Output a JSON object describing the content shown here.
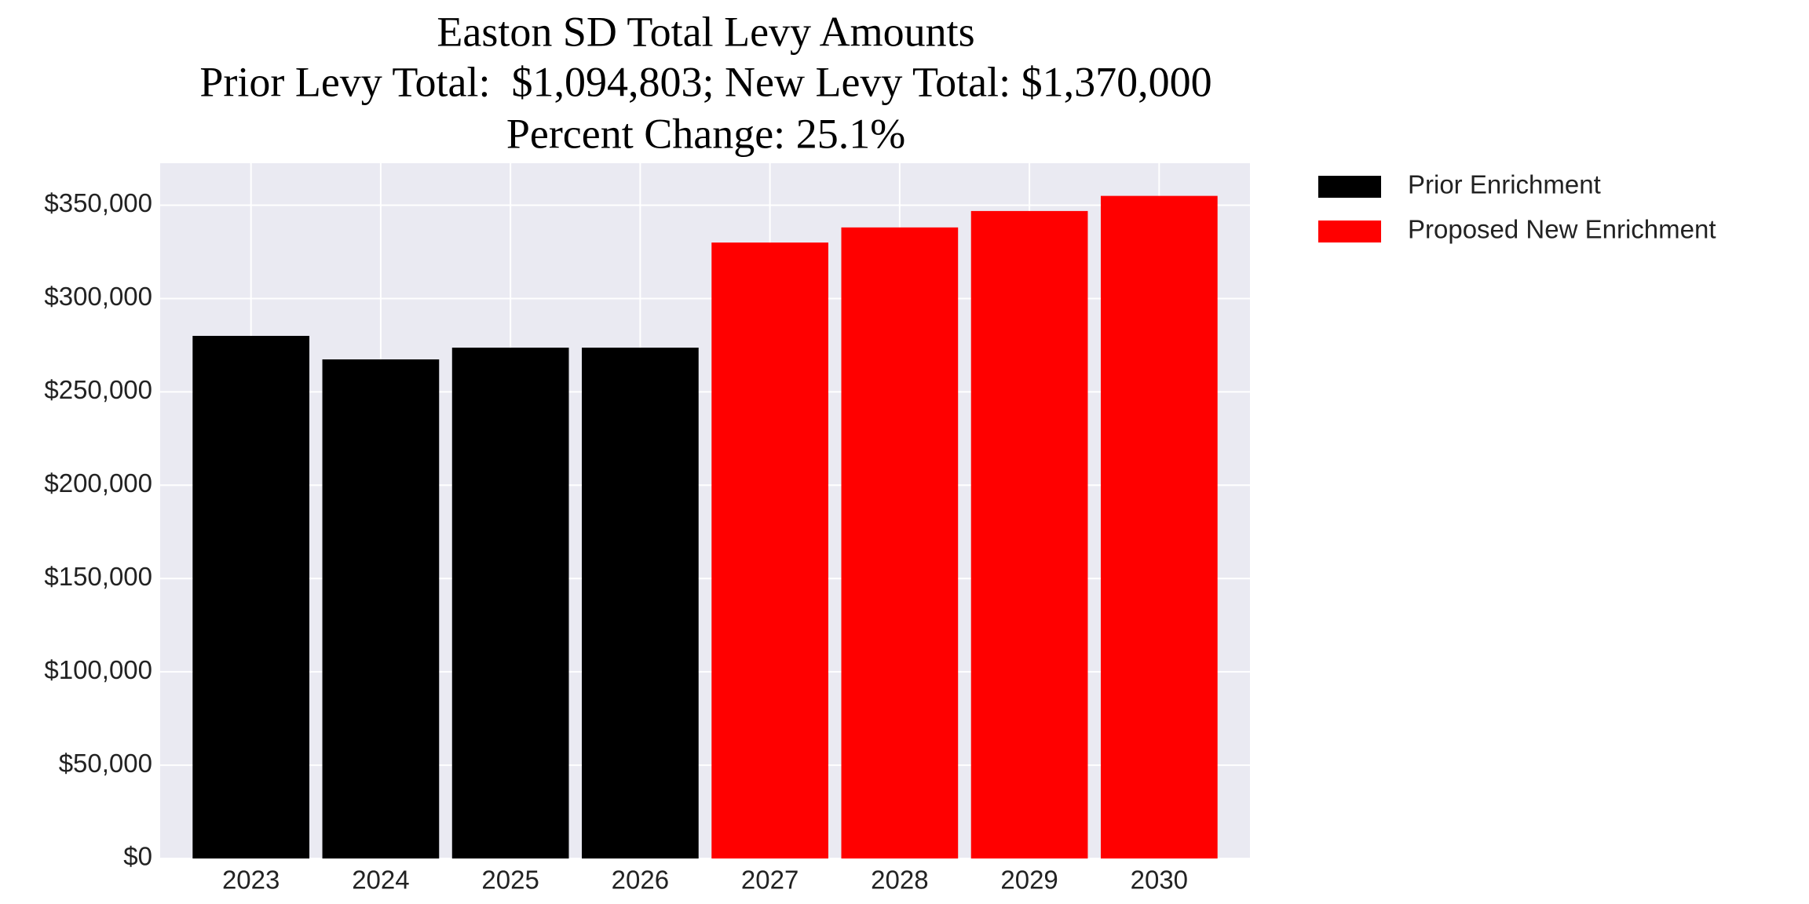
{
  "chart_data": {
    "type": "bar",
    "title": "Easton SD Total Levy Amounts",
    "subtitle": [
      "Prior Levy Total:  $1,094,803; New Levy Total: $1,370,000",
      "Percent Change: 25.1%"
    ],
    "categories": [
      "2023",
      "2024",
      "2025",
      "2026",
      "2027",
      "2028",
      "2029",
      "2030"
    ],
    "series": [
      {
        "name": "Prior Enrichment",
        "color": "#000000",
        "values": [
          280000,
          267400,
          273700,
          273700,
          null,
          null,
          null,
          null
        ]
      },
      {
        "name": "Proposed New Enrichment",
        "color": "#ff0000",
        "values": [
          null,
          null,
          null,
          null,
          330000,
          338100,
          346900,
          355000
        ]
      }
    ],
    "ylim": [
      0,
      372500
    ],
    "yticks": [
      {
        "value": 0,
        "label": "$0"
      },
      {
        "value": 50000,
        "label": "$50,000"
      },
      {
        "value": 100000,
        "label": "$100,000"
      },
      {
        "value": 150000,
        "label": "$150,000"
      },
      {
        "value": 200000,
        "label": "$200,000"
      },
      {
        "value": 250000,
        "label": "$250,000"
      },
      {
        "value": 300000,
        "label": "$300,000"
      },
      {
        "value": 350000,
        "label": "$350,000"
      }
    ],
    "grid": true,
    "legend": "outside-right"
  }
}
